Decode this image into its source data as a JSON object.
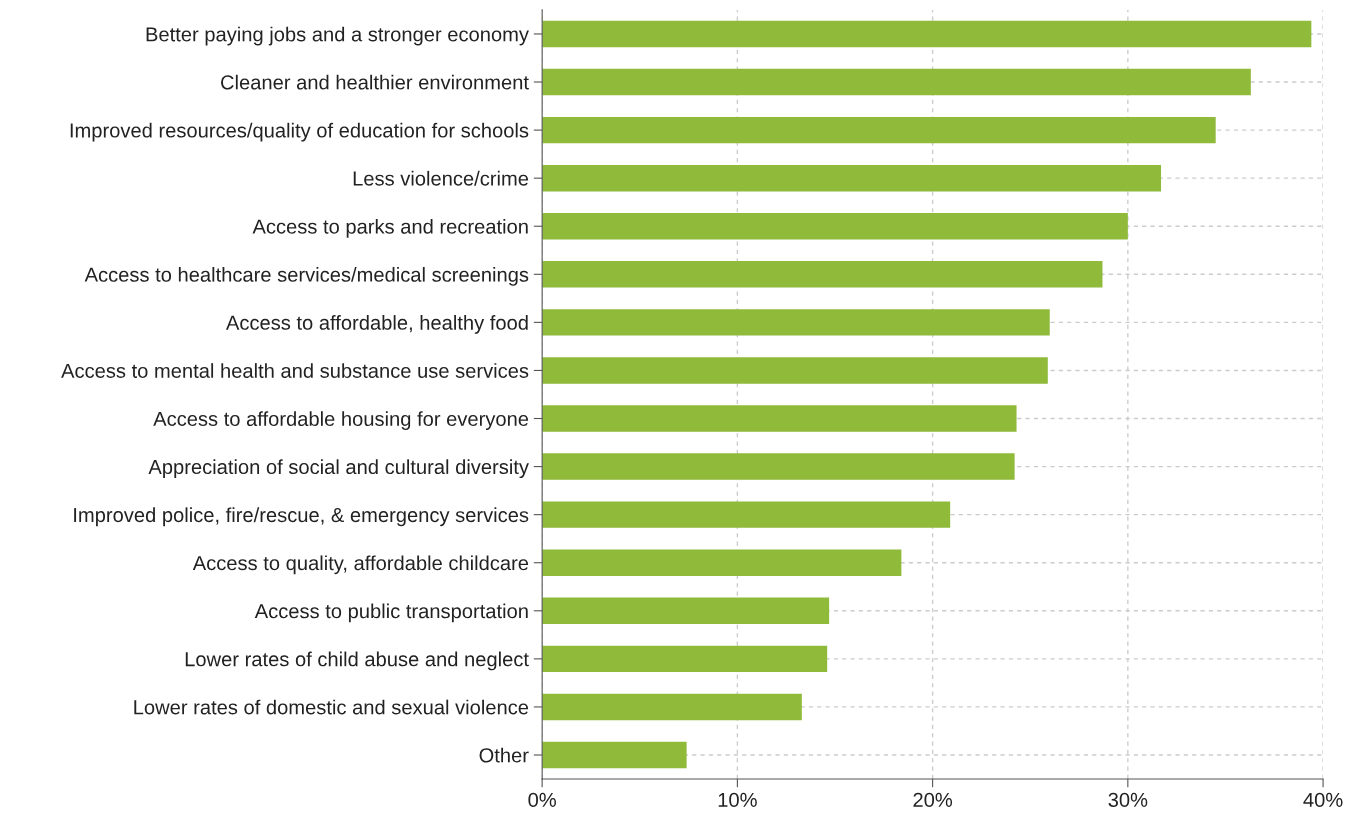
{
  "chart_data": {
    "type": "bar",
    "orientation": "horizontal",
    "categories": [
      "Better paying jobs and a stronger economy",
      "Cleaner and healthier environment",
      "Improved resources/quality of education for schools",
      "Less violence/crime",
      "Access to parks and recreation",
      "Access to healthcare services/medical screenings",
      "Access to affordable, healthy food",
      "Access to mental health and substance use services",
      "Access to affordable housing for everyone",
      "Appreciation of social and cultural diversity",
      "Improved police, fire/rescue, & emergency services",
      "Access to quality, affordable childcare",
      "Access to public transportation",
      "Lower rates of child abuse and neglect",
      "Lower rates of domestic and sexual violence",
      "Other"
    ],
    "values": [
      39.4,
      36.3,
      34.5,
      31.7,
      30.0,
      28.7,
      26.0,
      25.9,
      24.3,
      24.2,
      20.9,
      18.4,
      14.7,
      14.6,
      13.3,
      7.4
    ],
    "color": "#8fba3a",
    "xlim": [
      0,
      40
    ],
    "xticks": [
      {
        "value": 0,
        "label": "0%"
      },
      {
        "value": 10,
        "label": "10%"
      },
      {
        "value": 20,
        "label": "20%"
      },
      {
        "value": 30,
        "label": "30%"
      },
      {
        "value": 40,
        "label": "40%"
      }
    ],
    "grid": true
  }
}
